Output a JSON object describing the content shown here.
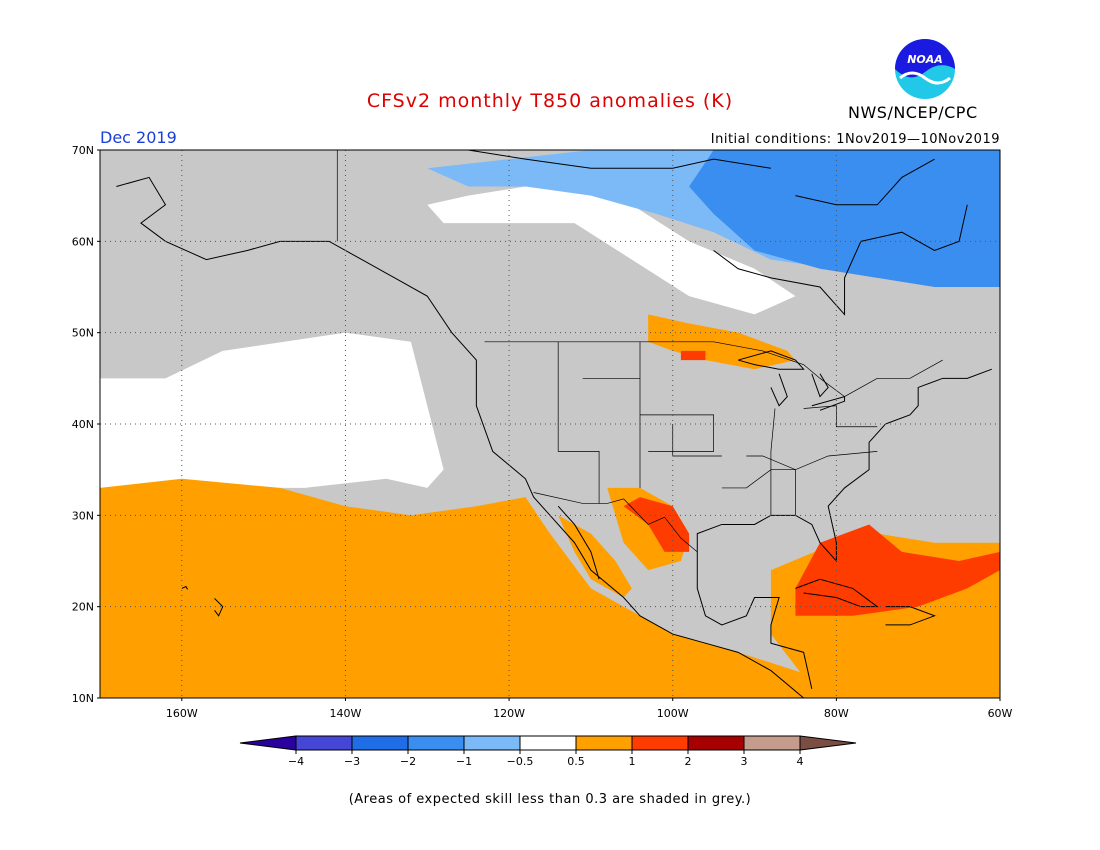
{
  "header": {
    "title": "CFSv2 monthly T850 anomalies (K)",
    "month": "Dec 2019",
    "initial_conditions": "Initial conditions: 1Nov2019—10Nov2019",
    "agency": "NWS/NCEP/CPC",
    "logo_text": "NOAA"
  },
  "map": {
    "region": {
      "lon_min": -170,
      "lon_max": -60,
      "lat_min": 10,
      "lat_max": 70
    },
    "lat_labels": [
      {
        "value": 70,
        "label": "70N"
      },
      {
        "value": 60,
        "label": "60N"
      },
      {
        "value": 50,
        "label": "50N"
      },
      {
        "value": 40,
        "label": "40N"
      },
      {
        "value": 30,
        "label": "30N"
      },
      {
        "value": 20,
        "label": "20N"
      },
      {
        "value": 10,
        "label": "10N"
      }
    ],
    "lon_labels": [
      {
        "value": -160,
        "label": "160W"
      },
      {
        "value": -140,
        "label": "140W"
      },
      {
        "value": -120,
        "label": "120W"
      },
      {
        "value": -100,
        "label": "100W"
      },
      {
        "value": -80,
        "label": "80W"
      },
      {
        "value": -60,
        "label": "60W"
      }
    ],
    "colors": {
      "grey_low_skill": "#c8c8c8",
      "neutral": "#ffffff",
      "land_outline": "#000000"
    }
  },
  "colorbar": {
    "bins": [
      {
        "label": "-4",
        "color": "#2a009e"
      },
      {
        "label": "-3",
        "color": "#4545d6"
      },
      {
        "label": "-2",
        "color": "#1f6ee8"
      },
      {
        "label": "-1",
        "color": "#3a8ef0"
      },
      {
        "label": "-0.5",
        "color": "#7cbaf7"
      },
      {
        "label": "0.5",
        "color": "#ffffff"
      },
      {
        "label": "1",
        "color": "#ff9f00"
      },
      {
        "label": "2",
        "color": "#ff3c00"
      },
      {
        "label": "3",
        "color": "#a60000"
      },
      {
        "label": "4",
        "color": "#c49c8c"
      }
    ],
    "high_end_color": "#7a4e42",
    "tick_labels": [
      "-4",
      "-3",
      "-2",
      "-1",
      "-0.5",
      "0.5",
      "1",
      "2",
      "3",
      "4"
    ]
  },
  "footnote": "(Areas of expected skill less than 0.3 are shaded in grey.)"
}
